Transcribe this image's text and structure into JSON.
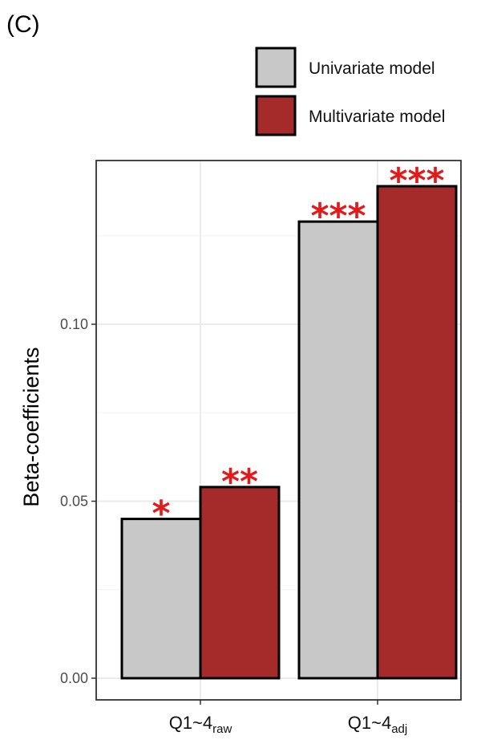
{
  "panel_label": "(C)",
  "colors": {
    "univariate": "#c8c8c8",
    "multivariate": "#a52a2a",
    "significance": "#e31a1c",
    "grid": "#ebebeb"
  },
  "chart_data": {
    "type": "bar",
    "title": "",
    "xlabel": "",
    "ylabel": "Beta-coefficients",
    "ylim": [
      0,
      0.14
    ],
    "yticks": [
      "0.00",
      "0.05",
      "0.10"
    ],
    "ytick_values": [
      0.0,
      0.05,
      0.1
    ],
    "grid": true,
    "legend_position": "top-right",
    "categories": [
      {
        "main": "Q1~4",
        "sub": "raw"
      },
      {
        "main": "Q1~4",
        "sub": "adj"
      }
    ],
    "series": [
      {
        "name": "Univariate model",
        "values": [
          0.045,
          0.129
        ],
        "significance": [
          "*",
          "***"
        ]
      },
      {
        "name": "Multivariate model",
        "values": [
          0.054,
          0.139
        ],
        "significance": [
          "**",
          "***"
        ]
      }
    ]
  }
}
